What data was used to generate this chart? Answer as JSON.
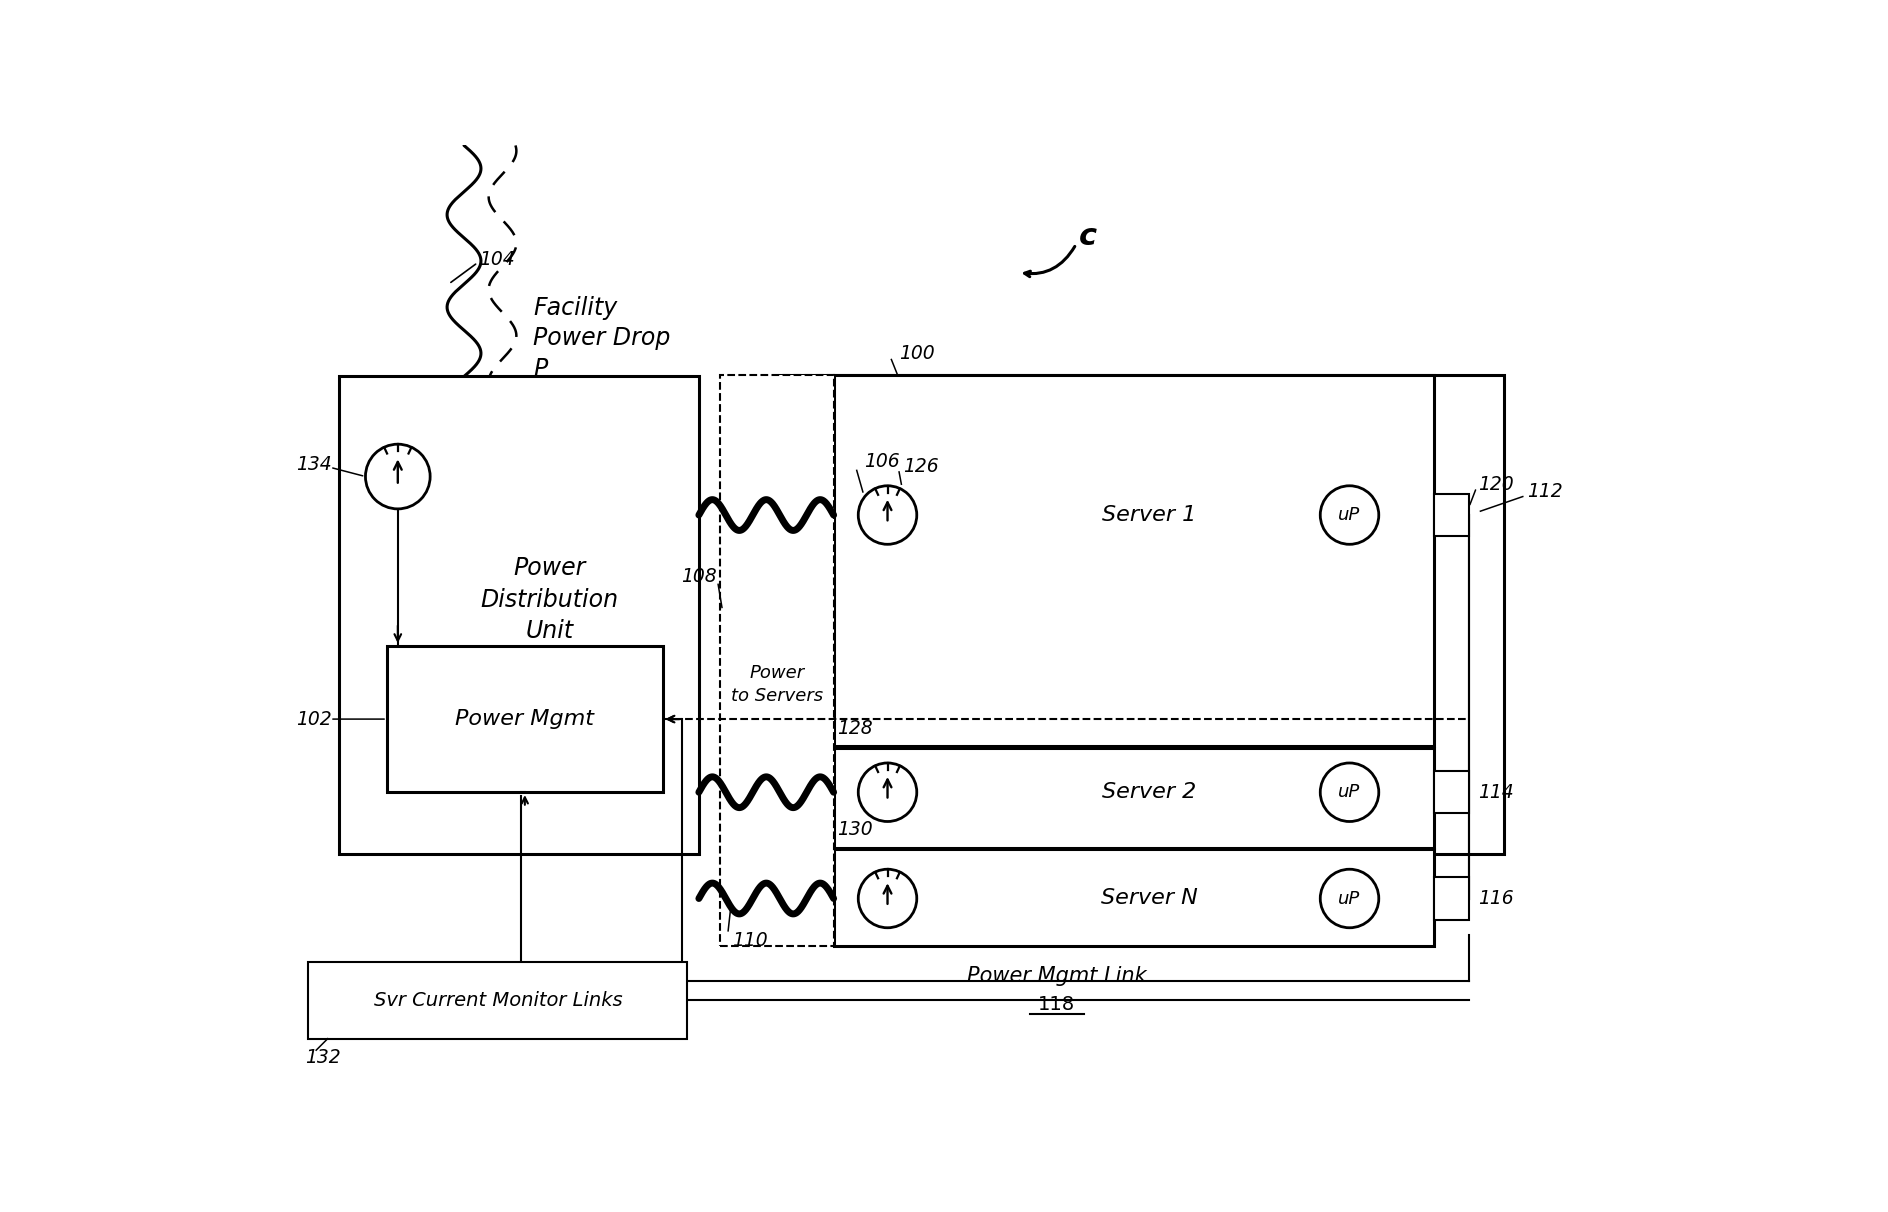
{
  "bg_color": "#ffffff",
  "line_color": "#000000",
  "fig_width": 18.88,
  "fig_height": 12.12,
  "labels": {
    "facility_power": "Facility\nPower Drop\nP",
    "pdu_label": "Power\nDistribution\nUnit",
    "power_mgmt": "Power Mgmt",
    "power_to_servers": "Power\nto Servers",
    "power_mgmt_link": "Power Mgmt Link",
    "n118": "118",
    "svr_monitor": "Svr Current Monitor Links",
    "server1": "Server 1",
    "server2": "Server 2",
    "serverN": "Server N",
    "uP": "uP",
    "ref_c": "c"
  },
  "refs": {
    "n104": "104",
    "n100": "100",
    "n102": "102",
    "n106": "106",
    "n108": "108",
    "n110": "110",
    "n112": "112",
    "n114": "114",
    "n116": "116",
    "n118": "118",
    "n120": "120",
    "n126": "126",
    "n128": "128",
    "n130": "130",
    "n132": "132",
    "n134": "134"
  }
}
